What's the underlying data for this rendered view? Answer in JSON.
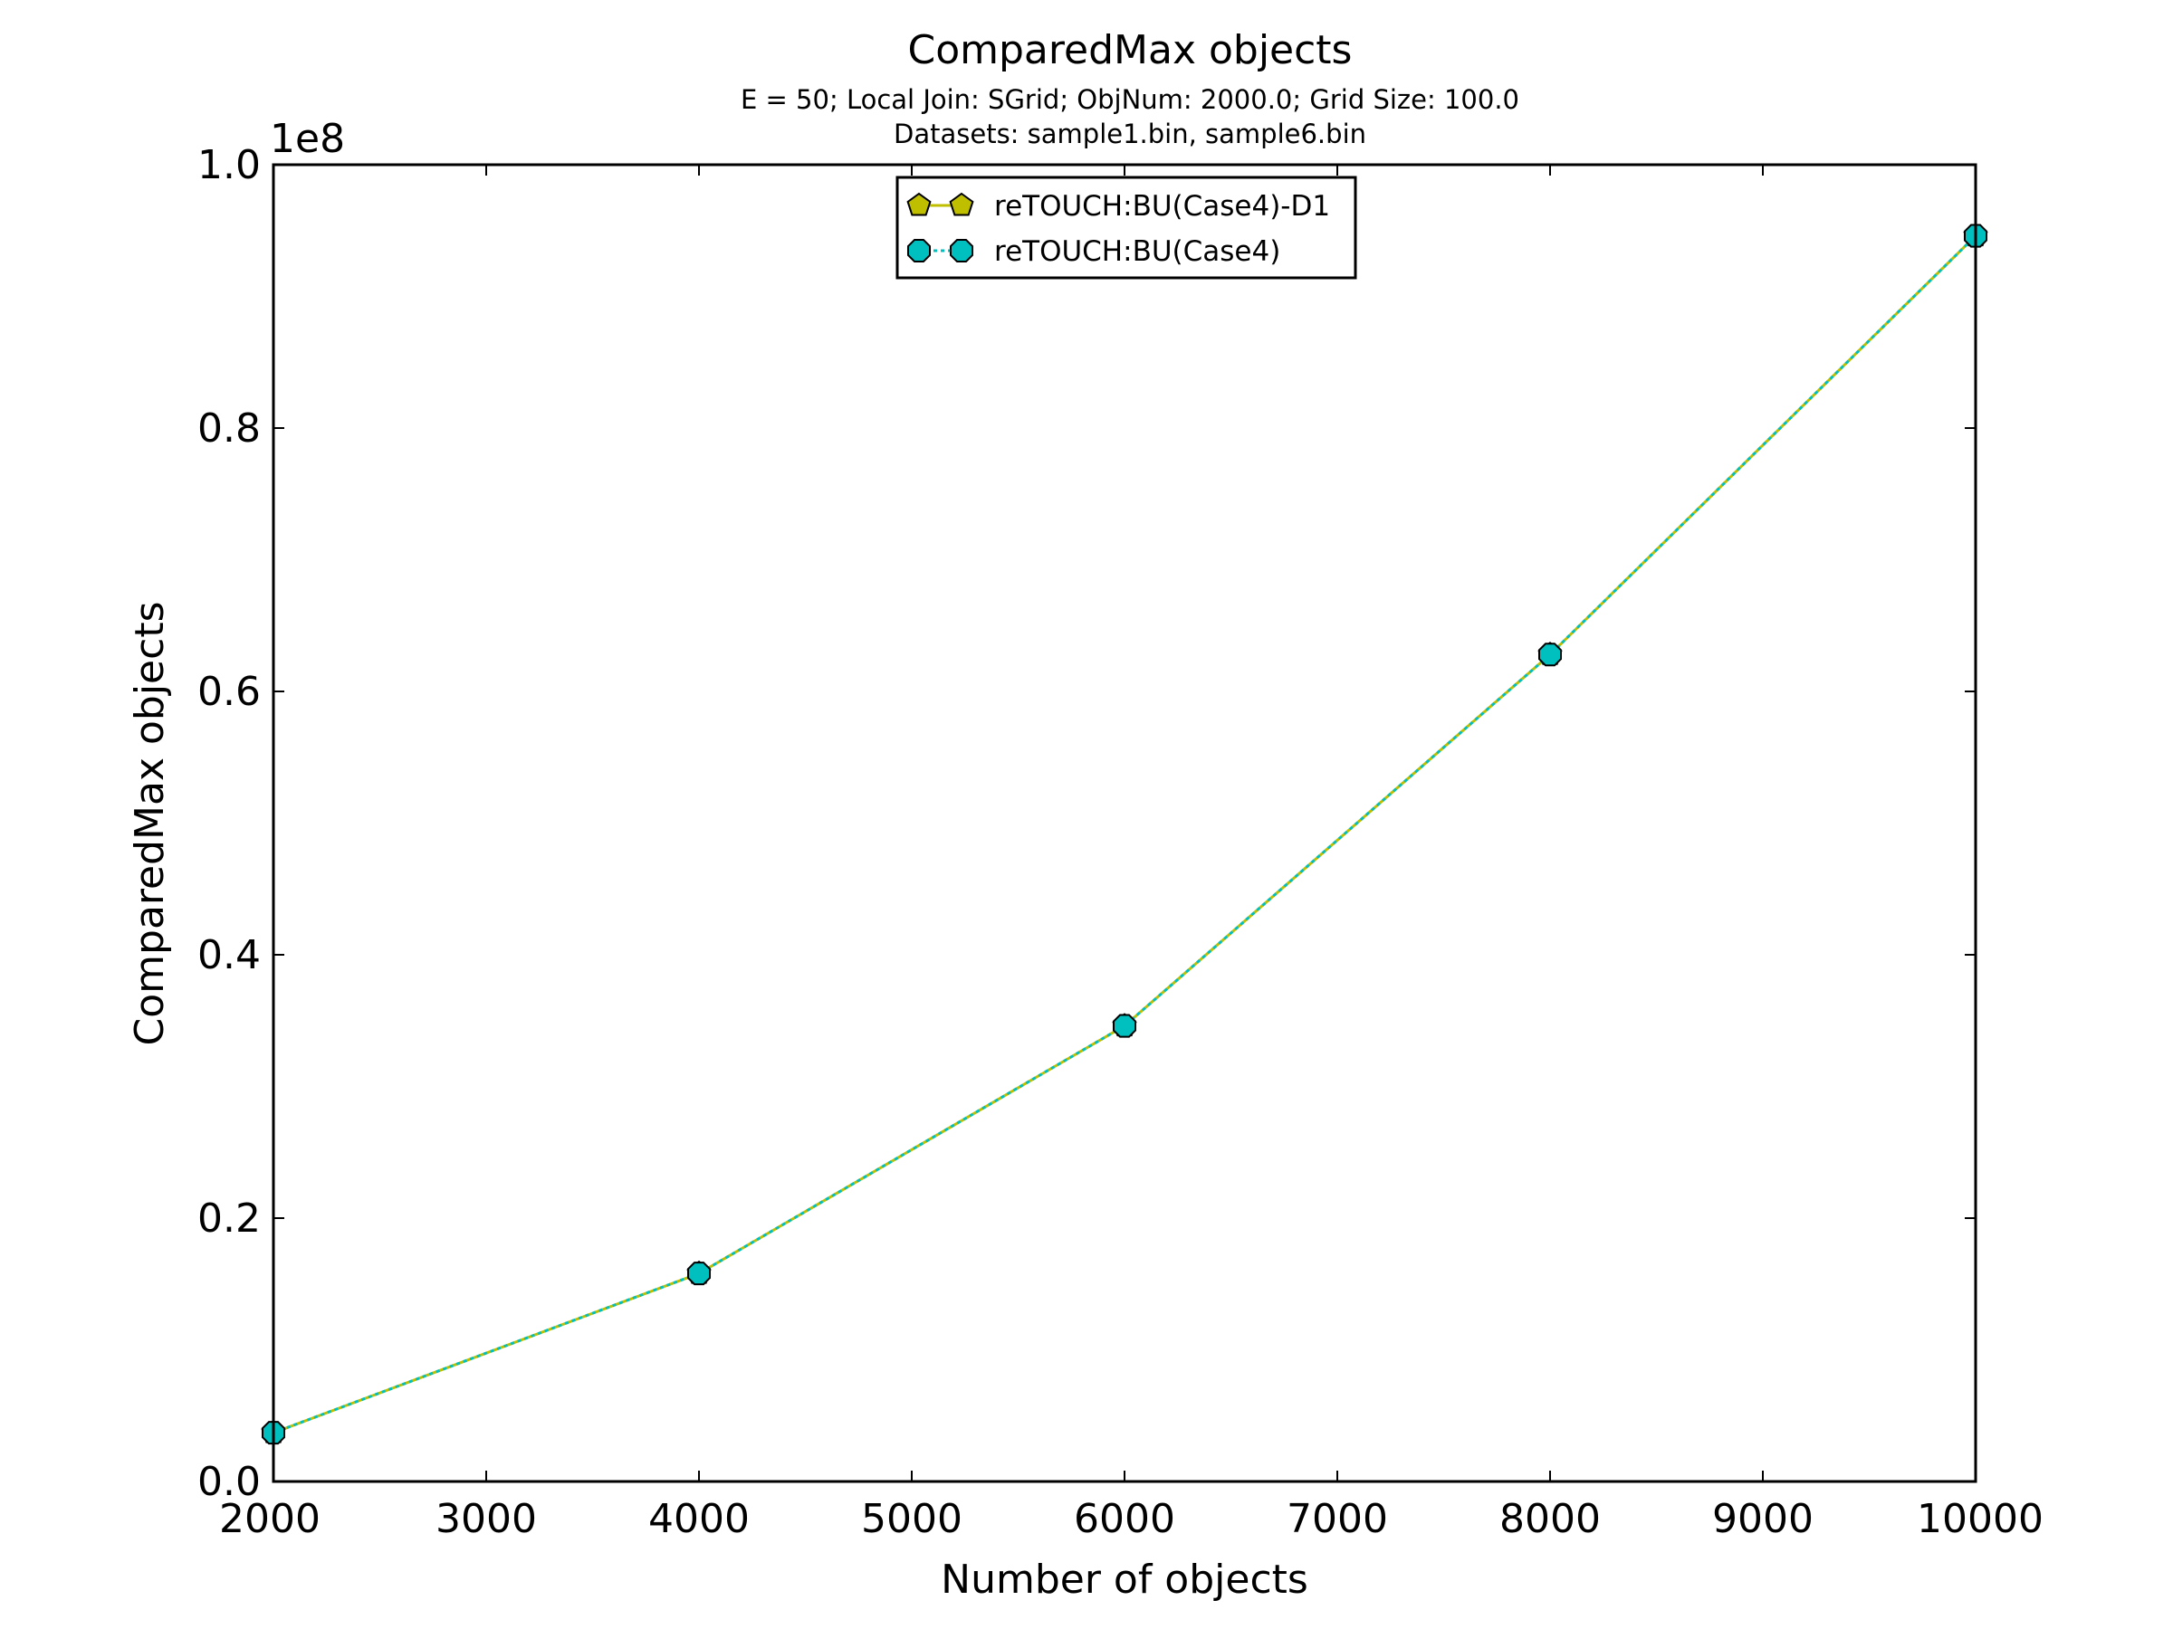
{
  "chart_data": {
    "type": "line",
    "title": "ComparedMax objects",
    "subtitle_lines": [
      "E = 50; Local Join: SGrid; ObjNum: 2000.0; Grid Size: 100.0",
      "Datasets: sample1.bin, sample6.bin"
    ],
    "xlabel": "Number of objects",
    "ylabel": "ComparedMax objects",
    "y_offset_label": "1e8",
    "xlim": [
      2000,
      10000
    ],
    "ylim": [
      0,
      1.0
    ],
    "y_scale_factor": 100000000,
    "xticks": [
      2000,
      3000,
      4000,
      5000,
      6000,
      7000,
      8000,
      9000,
      10000
    ],
    "xtick_labels": [
      "2000",
      "3000",
      "4000",
      "5000",
      "6000",
      "7000",
      "8000",
      "9000",
      "10000"
    ],
    "yticks": [
      0.0,
      0.2,
      0.4,
      0.6,
      0.8,
      1.0
    ],
    "ytick_labels": [
      "0.0",
      "0.2",
      "0.4",
      "0.6",
      "0.8",
      "1.0"
    ],
    "grid": false,
    "legend_position": "top-center",
    "x": [
      2000,
      4000,
      6000,
      8000,
      10000
    ],
    "series": [
      {
        "name": "reTOUCH:BU(Case4)-D1",
        "values": [
          0.037,
          0.158,
          0.346,
          0.628,
          0.946
        ],
        "color": "#bfbf00",
        "line_style": "solid",
        "marker": "pentagon"
      },
      {
        "name": "reTOUCH:BU(Case4)",
        "values": [
          0.037,
          0.158,
          0.346,
          0.628,
          0.946
        ],
        "color": "#00bfbf",
        "line_style": "dotted",
        "marker": "octagon"
      }
    ]
  }
}
